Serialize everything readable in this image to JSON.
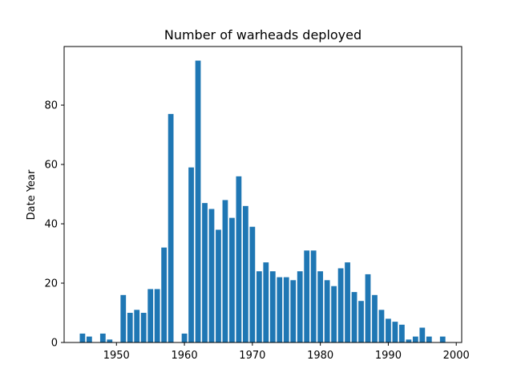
{
  "chart_data": {
    "type": "bar",
    "title": "Number of warheads deployed",
    "xlabel": "",
    "ylabel": "Date Year",
    "x": [
      1945,
      1946,
      1948,
      1949,
      1951,
      1952,
      1953,
      1954,
      1955,
      1956,
      1957,
      1958,
      1960,
      1961,
      1962,
      1963,
      1964,
      1965,
      1966,
      1967,
      1968,
      1969,
      1970,
      1971,
      1972,
      1973,
      1974,
      1975,
      1976,
      1977,
      1978,
      1979,
      1980,
      1981,
      1982,
      1983,
      1984,
      1985,
      1986,
      1987,
      1988,
      1989,
      1990,
      1991,
      1992,
      1993,
      1994,
      1995,
      1996,
      1998
    ],
    "values": [
      3,
      2,
      3,
      1,
      16,
      10,
      11,
      10,
      18,
      18,
      32,
      77,
      3,
      59,
      95,
      47,
      45,
      38,
      48,
      42,
      56,
      46,
      39,
      24,
      27,
      24,
      22,
      22,
      21,
      24,
      31,
      31,
      24,
      21,
      19,
      25,
      27,
      17,
      14,
      23,
      16,
      11,
      8,
      7,
      6,
      1,
      2,
      5,
      2,
      2
    ],
    "xlim": [
      1942.3,
      2000.8
    ],
    "ylim": [
      0,
      99.75
    ],
    "xticks": [
      1950,
      1960,
      1970,
      1980,
      1990,
      2000
    ],
    "yticks": [
      0,
      20,
      40,
      60,
      80
    ],
    "bar_width": 0.8,
    "bar_color": "#1f77b4",
    "grid": false,
    "legend": "none"
  }
}
